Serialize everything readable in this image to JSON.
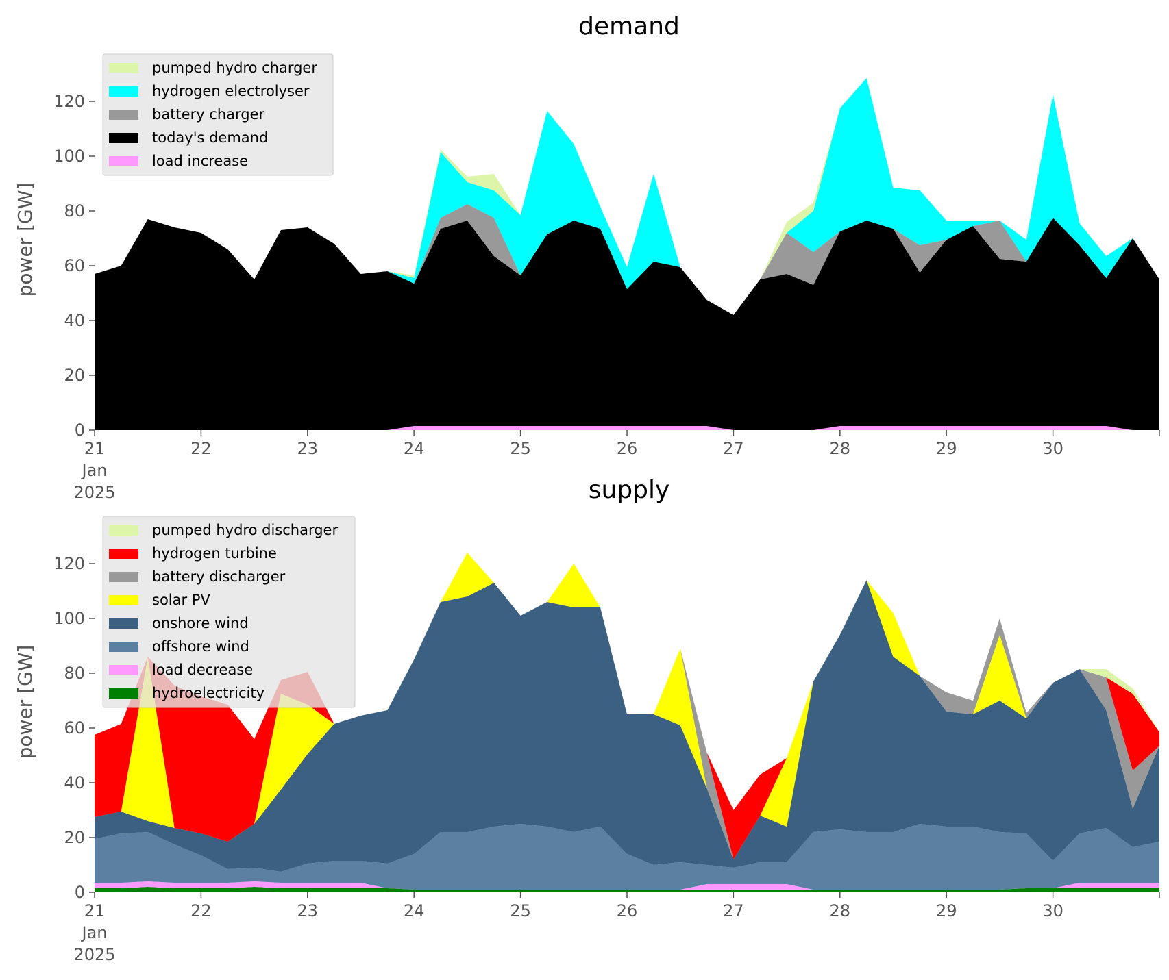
{
  "chart_data": [
    {
      "type": "area",
      "stacked": true,
      "title": "demand",
      "ylabel": "power [GW]",
      "xlabel": "",
      "x_unit": "days from 21 Jan 2025 00:00",
      "xlim": [
        0,
        10
      ],
      "ylim": [
        0,
        140
      ],
      "yticks": [
        0,
        20,
        40,
        60,
        80,
        100,
        120
      ],
      "xtick_values": [
        0,
        1,
        2,
        3,
        4,
        5,
        6,
        7,
        8,
        9
      ],
      "xtick_labels": [
        "21",
        "22",
        "23",
        "24",
        "25",
        "26",
        "27",
        "28",
        "29",
        "30"
      ],
      "xtick_sublabels": [
        "Jan",
        "2025"
      ],
      "grid": false,
      "legend": "top-left",
      "x": [
        0,
        0.25,
        0.5,
        0.75,
        1,
        1.25,
        1.5,
        1.75,
        2,
        2.25,
        2.5,
        2.75,
        3,
        3.25,
        3.5,
        3.75,
        4,
        4.25,
        4.5,
        4.75,
        5,
        5.25,
        5.5,
        5.75,
        6,
        6.25,
        6.5,
        6.75,
        7,
        7.25,
        7.5,
        7.75,
        8,
        8.25,
        8.5,
        8.75,
        9,
        9.25,
        9.5,
        9.75,
        10
      ],
      "series": [
        {
          "name": "load increase",
          "color": "#ff99ff",
          "values": [
            0,
            0,
            0,
            0,
            0,
            0,
            0,
            0,
            0,
            0,
            0,
            0,
            1.5,
            1.5,
            1.5,
            1.5,
            1.5,
            1.5,
            1.5,
            1.5,
            1.5,
            1.5,
            1.5,
            1.5,
            0,
            0,
            0,
            0,
            1.5,
            1.5,
            1.5,
            1.5,
            1.5,
            1.5,
            1.5,
            1.5,
            1.5,
            1.5,
            1.5,
            0,
            0
          ]
        },
        {
          "name": "today's demand",
          "color": "#000000",
          "values": [
            57,
            60,
            77,
            74,
            72,
            66,
            55,
            73,
            74,
            68,
            57,
            58,
            52,
            72,
            75,
            62,
            55,
            70,
            75,
            72,
            50,
            60,
            58,
            46,
            42,
            55,
            57,
            53,
            71,
            75,
            72,
            56,
            68,
            73,
            61,
            60,
            76,
            66,
            54,
            70,
            55
          ]
        },
        {
          "name": "battery charger",
          "color": "#999999",
          "values": [
            0,
            0,
            0,
            0,
            0,
            0,
            0,
            0,
            0,
            0,
            0,
            0,
            0,
            4,
            6,
            14,
            0,
            0,
            0,
            0,
            0,
            0,
            0,
            0,
            0,
            0,
            15,
            12,
            0,
            0,
            0,
            10,
            0,
            0,
            14,
            0,
            0,
            0,
            0,
            0,
            0
          ]
        },
        {
          "name": "hydrogen electrolyser",
          "color": "#00ffff",
          "values": [
            0,
            0,
            0,
            0,
            0,
            0,
            0,
            0,
            0,
            0,
            0,
            0,
            2,
            24,
            8,
            10,
            22,
            45,
            28,
            8,
            8,
            32,
            0,
            0,
            0,
            0,
            0,
            15,
            45,
            52,
            15,
            20,
            7,
            2,
            0,
            8,
            45,
            8,
            8,
            0,
            0
          ]
        },
        {
          "name": "pumped hydro charger",
          "color": "#ddf5a8",
          "values": [
            0,
            0,
            0,
            0,
            0,
            0,
            0,
            0,
            0,
            0,
            0,
            0,
            1,
            1,
            2,
            6,
            0,
            0,
            0,
            0,
            0,
            0,
            0,
            0,
            0,
            0,
            4,
            3,
            0,
            0,
            0,
            0,
            0,
            0,
            0,
            0,
            0,
            0,
            0,
            0,
            0
          ]
        }
      ]
    },
    {
      "type": "area",
      "stacked": true,
      "title": "supply",
      "ylabel": "power [GW]",
      "xlabel": "",
      "x_unit": "days from 21 Jan 2025 00:00",
      "xlim": [
        0,
        10
      ],
      "ylim": [
        0,
        140
      ],
      "yticks": [
        0,
        20,
        40,
        60,
        80,
        100,
        120
      ],
      "xtick_values": [
        0,
        1,
        2,
        3,
        4,
        5,
        6,
        7,
        8,
        9
      ],
      "xtick_labels": [
        "21",
        "22",
        "23",
        "24",
        "25",
        "26",
        "27",
        "28",
        "29",
        "30"
      ],
      "xtick_sublabels": [
        "Jan",
        "2025"
      ],
      "grid": false,
      "legend": "top-left",
      "x": [
        0,
        0.25,
        0.5,
        0.75,
        1,
        1.25,
        1.5,
        1.75,
        2,
        2.25,
        2.5,
        2.75,
        3,
        3.25,
        3.5,
        3.75,
        4,
        4.25,
        4.5,
        4.75,
        5,
        5.25,
        5.5,
        5.75,
        6,
        6.25,
        6.5,
        6.75,
        7,
        7.25,
        7.5,
        7.75,
        8,
        8.25,
        8.5,
        8.75,
        9,
        9.25,
        9.5,
        9.75,
        10
      ],
      "series": [
        {
          "name": "hydroelectricity",
          "color": "#008000",
          "values": [
            1.5,
            1.5,
            2,
            1.5,
            1.5,
            1.5,
            2,
            1.5,
            1.5,
            1.5,
            1.5,
            1.5,
            1,
            1,
            1,
            1,
            1,
            1,
            1,
            1,
            1,
            1,
            1,
            1,
            1,
            1,
            1,
            1,
            1,
            1,
            1,
            1,
            1,
            1,
            1,
            1.5,
            1.5,
            1.5,
            1.5,
            1.5,
            1.5
          ]
        },
        {
          "name": "load decrease",
          "color": "#ff99ff",
          "values": [
            2,
            2,
            2,
            2,
            2,
            2,
            2,
            2,
            2,
            2,
            2,
            0,
            0,
            0,
            0,
            0,
            0,
            0,
            0,
            0,
            0,
            0,
            0,
            2,
            2,
            2,
            2,
            0,
            0,
            0,
            0,
            0,
            0,
            0,
            0,
            0,
            0,
            2,
            2,
            2,
            2
          ]
        },
        {
          "name": "offshore wind",
          "color": "#5b80a2",
          "values": [
            16,
            18,
            18,
            14,
            10,
            5,
            5,
            4,
            7,
            8,
            8,
            9,
            13,
            21,
            21,
            23,
            24,
            23,
            21,
            23,
            13,
            9,
            10,
            7,
            6,
            8,
            8,
            21,
            22,
            21,
            21,
            24,
            23,
            23,
            21,
            20,
            10,
            18,
            20,
            13,
            15
          ]
        },
        {
          "name": "onshore wind",
          "color": "#3c6081",
          "values": [
            8,
            8,
            4,
            6,
            8,
            10,
            16,
            30,
            40,
            50,
            53,
            56,
            71,
            84,
            86,
            89,
            76,
            82,
            82,
            80,
            51,
            55,
            50,
            28,
            3,
            17,
            13,
            55,
            71,
            92,
            64,
            54,
            42,
            41,
            48,
            42,
            65,
            60,
            43,
            14,
            35
          ]
        },
        {
          "name": "solar PV",
          "color": "#ffff00",
          "values": [
            0,
            0,
            60,
            0,
            0,
            0,
            0,
            35,
            18,
            0,
            0,
            0,
            0,
            0,
            16,
            0,
            0,
            0,
            16,
            0,
            0,
            0,
            28,
            0,
            0,
            0,
            25,
            0,
            0,
            0,
            16,
            0,
            0,
            0,
            24,
            0,
            0,
            0,
            0,
            0,
            0
          ]
        },
        {
          "name": "battery discharger",
          "color": "#999999",
          "values": [
            0,
            0,
            0,
            0,
            0,
            0,
            0,
            0,
            0,
            0,
            0,
            0,
            0,
            0,
            0,
            0,
            0,
            0,
            0,
            0,
            0,
            0,
            0,
            13,
            0,
            0,
            0,
            0,
            0,
            0,
            0,
            0,
            7,
            5,
            6,
            2,
            0,
            0,
            12,
            14,
            0
          ]
        },
        {
          "name": "hydrogen turbine",
          "color": "#ff0000",
          "values": [
            30,
            32,
            0,
            52,
            50,
            50,
            31,
            5,
            12,
            0,
            0,
            0,
            0,
            0,
            0,
            0,
            0,
            0,
            0,
            0,
            0,
            0,
            0,
            0,
            18,
            15,
            0,
            0,
            0,
            0,
            0,
            0,
            0,
            0,
            0,
            0,
            0,
            0,
            0,
            28,
            5
          ]
        },
        {
          "name": "pumped hydro discharger",
          "color": "#ddf5a8",
          "values": [
            0,
            0,
            0,
            0,
            0,
            0,
            0,
            0,
            0,
            0,
            0,
            0,
            0,
            0,
            0,
            0,
            0,
            0,
            0,
            0,
            0,
            0,
            0,
            0,
            0,
            0,
            0,
            0,
            0,
            0,
            0,
            0,
            0,
            0,
            0,
            0,
            0,
            0,
            3,
            2,
            0
          ]
        }
      ]
    }
  ]
}
